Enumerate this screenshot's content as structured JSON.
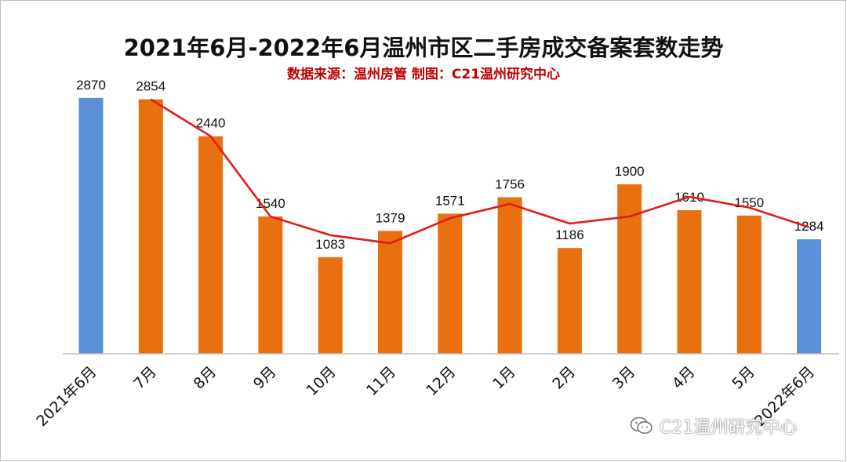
{
  "title": "2021年6月-2022年6月温州市区二手房成交备案套数走势",
  "subtitle": "数据来源：温州房管  制图：C21温州研究中心",
  "watermark": {
    "text": "C21温州研究中心",
    "icon": "wechat-icon"
  },
  "colors": {
    "highlight_bar": "#5B8FD6",
    "bar": "#E8700E",
    "trend_line": "#E31B1B",
    "subtitle": "#C00000"
  },
  "chart_data": {
    "type": "bar",
    "categories": [
      "2021年6月",
      "7月",
      "8月",
      "9月",
      "10月",
      "11月",
      "12月",
      "1月",
      "2月",
      "3月",
      "4月",
      "5月",
      "2022年6月"
    ],
    "values": [
      2870,
      2854,
      2440,
      1540,
      1083,
      1379,
      1571,
      1756,
      1186,
      1900,
      1610,
      1550,
      1284
    ],
    "highlight_categories": [
      "2021年6月",
      "2022年6月"
    ],
    "data_labels": [
      "2870",
      "2854",
      "2440",
      "1540",
      "1083",
      "1379",
      "1571",
      "1756",
      "1186",
      "1900",
      "1610",
      "1550",
      "1284"
    ],
    "trend_line": {
      "type": "line",
      "categories": [
        "7月",
        "8月",
        "9月",
        "10月",
        "11月",
        "12月",
        "1月",
        "2月",
        "3月",
        "4月",
        "5月",
        "2022年6月"
      ],
      "values": [
        2854,
        2440,
        1540,
        1330,
        1240,
        1520,
        1680,
        1460,
        1540,
        1760,
        1640,
        1420
      ]
    },
    "ylim": [
      0,
      3000
    ],
    "grid": false,
    "legend": "none"
  }
}
